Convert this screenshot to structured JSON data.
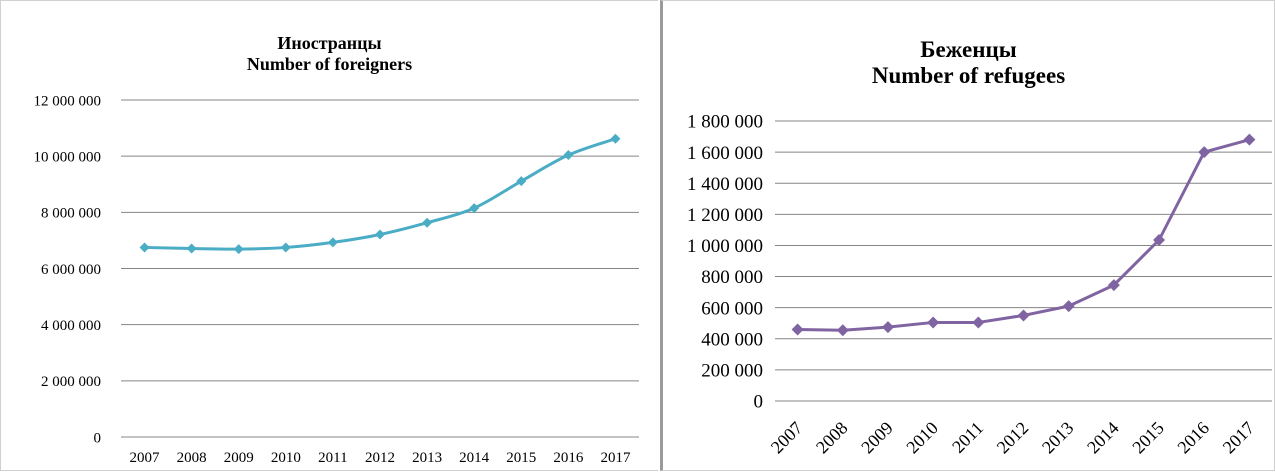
{
  "chart_data": [
    {
      "type": "line",
      "title": "Иностранцы",
      "subtitle": "Number of foreigners",
      "categories": [
        "2007",
        "2008",
        "2009",
        "2010",
        "2011",
        "2012",
        "2013",
        "2014",
        "2015",
        "2016",
        "2017"
      ],
      "series": [
        {
          "values": [
            6750000,
            6710000,
            6690000,
            6750000,
            6930000,
            7210000,
            7630000,
            8150000,
            9110000,
            10040000,
            10620000
          ]
        }
      ],
      "ylim": [
        0,
        12000000
      ],
      "yticks": [
        0,
        2000000,
        4000000,
        6000000,
        8000000,
        10000000,
        12000000
      ],
      "ytick_labels": [
        "0",
        "2 000 000",
        "4 000 000",
        "6 000 000",
        "8 000 000",
        "10 000 000",
        "12 000 000"
      ],
      "grid": true,
      "color": "#4BACC6",
      "marker": "diamond"
    },
    {
      "type": "line",
      "title": "Беженцы",
      "subtitle": "Number of refugees",
      "categories": [
        "2007",
        "2008",
        "2009",
        "2010",
        "2011",
        "2012",
        "2013",
        "2014",
        "2015",
        "2016",
        "2017"
      ],
      "series": [
        {
          "values": [
            460000,
            455000,
            475000,
            505000,
            505000,
            550000,
            610000,
            745000,
            1035000,
            1600000,
            1680000
          ]
        }
      ],
      "ylim": [
        0,
        1800000
      ],
      "yticks": [
        0,
        200000,
        400000,
        600000,
        800000,
        1000000,
        1200000,
        1400000,
        1600000,
        1800000
      ],
      "ytick_labels": [
        "0",
        "200 000",
        "400 000",
        "600 000",
        "800 000",
        "1 000 000",
        "1 200 000",
        "1 400 000",
        "1 600 000",
        "1 800 000"
      ],
      "grid": true,
      "color": "#8064A2",
      "marker": "diamond",
      "xtick_rotation": "angled"
    }
  ]
}
